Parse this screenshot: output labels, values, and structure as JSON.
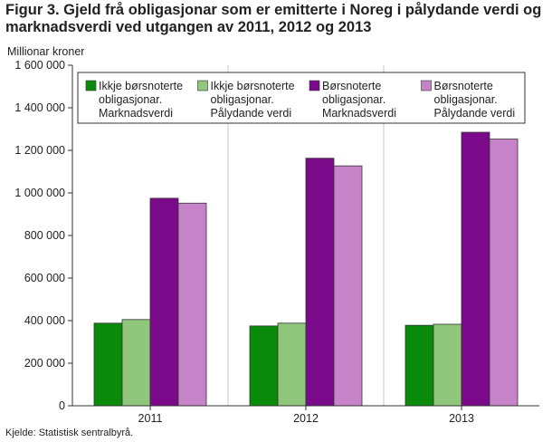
{
  "figure": {
    "title": "Figur 3. Gjeld frå obligasjonar som er emitterte i Noreg i pålydande verdi og marknadsverdi ved utgangen av 2011, 2012 og 2013",
    "source": "Kjelde: Statistisk sentralbyrå."
  },
  "chart_data": {
    "type": "bar",
    "title": "",
    "ylabel": "Millionar kroner",
    "xlabel": "",
    "categories": [
      "2011",
      "2012",
      "2013"
    ],
    "ylim": [
      0,
      1600000
    ],
    "yticks": [
      0,
      200000,
      400000,
      600000,
      800000,
      1000000,
      1200000,
      1400000,
      1600000
    ],
    "ytick_labels": [
      "0",
      "200 000",
      "400 000",
      "600 000",
      "800 000",
      "1 000 000",
      "1 200 000",
      "1 400 000",
      "1 600 000"
    ],
    "grid": "vertical separators between categories",
    "legend_position": "top",
    "series": [
      {
        "name": "Ikkje børsnoterte obligasjonar. Marknadsverdi",
        "legend_lines": [
          "Ikkje børsnoterte",
          "obligasjonar.",
          "Marknadsverdi"
        ],
        "color": "#0a8a0a",
        "values": [
          388000,
          375000,
          378000
        ]
      },
      {
        "name": "Ikkje børsnoterte obligasjonar. Pålydande verdi",
        "legend_lines": [
          "Ikkje børsnoterte",
          "obligasjonar.",
          "Pålydande verdi"
        ],
        "color": "#90c57c",
        "values": [
          405000,
          388000,
          383000
        ]
      },
      {
        "name": "Børsnoterte obligasjonar. Marknadsverdi",
        "legend_lines": [
          "Børsnoterte",
          "obligasjonar.",
          "Marknadsverdi"
        ],
        "color": "#7b0a8b",
        "values": [
          975000,
          1163000,
          1285000
        ]
      },
      {
        "name": "Børsnoterte obligasjonar. Pålydande verdi",
        "legend_lines": [
          "Børsnoterte",
          "obligasjonar.",
          "Pålydande verdi"
        ],
        "color": "#c683c8",
        "values": [
          952000,
          1127000,
          1253000
        ]
      }
    ]
  }
}
